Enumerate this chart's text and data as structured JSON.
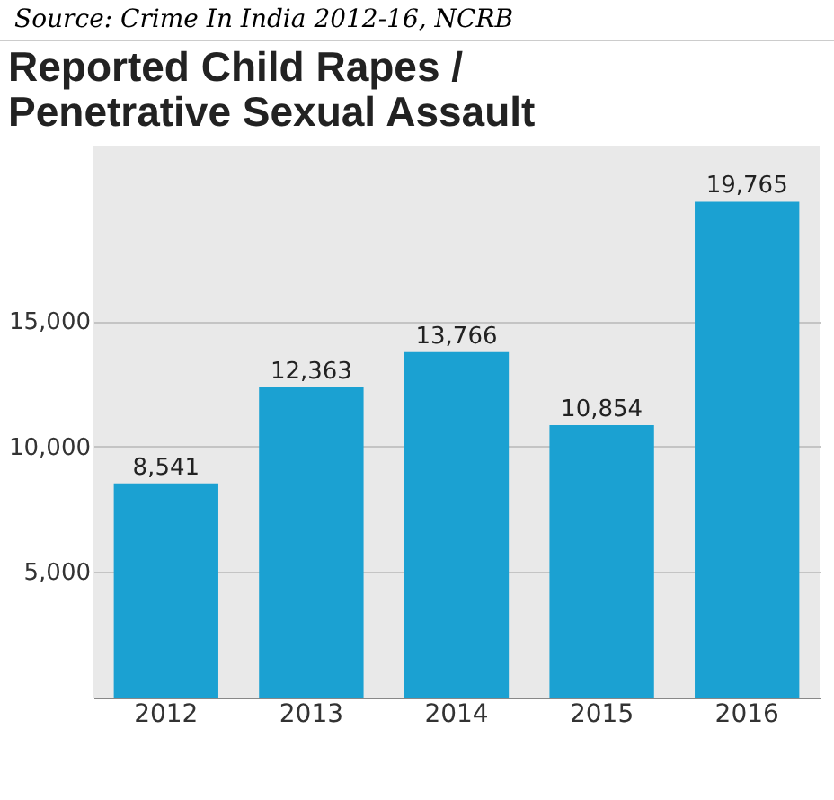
{
  "chart_data": {
    "type": "bar",
    "title": "Reported Child Rapes / Penetrative Sexual Assault",
    "annotations": [
      "Source: Crime In India 2012-16, NCRB"
    ],
    "categories": [
      "2012",
      "2013",
      "2014",
      "2015",
      "2016"
    ],
    "values": [
      8541,
      12363,
      13766,
      10854,
      19765
    ],
    "value_labels": [
      "8,541",
      "12,363",
      "13,766",
      "10,854",
      "19,765"
    ],
    "color": "#1ba1d2",
    "ylim": [
      0,
      22000
    ],
    "yticks": [
      {
        "value": 5000,
        "label": "5,000"
      },
      {
        "value": 10000,
        "label": "10,000"
      },
      {
        "value": 15000,
        "label": "15,000"
      }
    ],
    "grid": "y"
  }
}
